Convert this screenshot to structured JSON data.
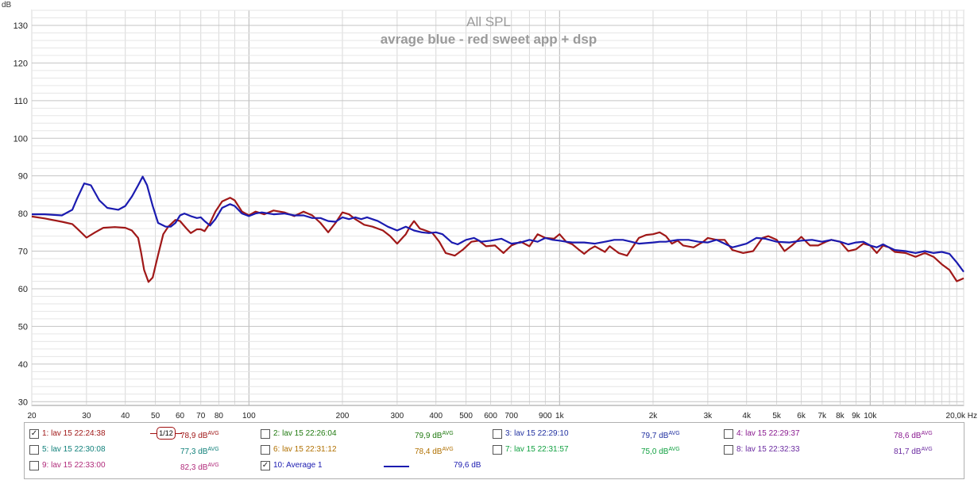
{
  "chart_data": {
    "type": "line",
    "title": "All SPL",
    "subtitle": "avrage blue - red sweet app + dsp",
    "ylabel": "dB",
    "xlabel": "Hz",
    "xscale": "log",
    "xlim": [
      20,
      20000
    ],
    "ylim": [
      29,
      134
    ],
    "grid": true,
    "y_ticks": [
      30,
      40,
      50,
      60,
      70,
      80,
      90,
      100,
      110,
      120,
      130
    ],
    "x_tick_labels": [
      {
        "v": 20,
        "t": "20"
      },
      {
        "v": 30,
        "t": "30"
      },
      {
        "v": 40,
        "t": "40"
      },
      {
        "v": 50,
        "t": "50"
      },
      {
        "v": 60,
        "t": "60"
      },
      {
        "v": 70,
        "t": "70"
      },
      {
        "v": 80,
        "t": "80"
      },
      {
        "v": 100,
        "t": "100"
      },
      {
        "v": 200,
        "t": "200"
      },
      {
        "v": 300,
        "t": "300"
      },
      {
        "v": 400,
        "t": "400"
      },
      {
        "v": 500,
        "t": "500"
      },
      {
        "v": 600,
        "t": "600"
      },
      {
        "v": 700,
        "t": "700"
      },
      {
        "v": 900,
        "t": "900"
      },
      {
        "v": 1000,
        "t": "1k"
      },
      {
        "v": 2000,
        "t": "2k"
      },
      {
        "v": 3000,
        "t": "3k"
      },
      {
        "v": 4000,
        "t": "4k"
      },
      {
        "v": 5000,
        "t": "5k"
      },
      {
        "v": 6000,
        "t": "6k"
      },
      {
        "v": 7000,
        "t": "7k"
      },
      {
        "v": 8000,
        "t": "8k"
      },
      {
        "v": 9000,
        "t": "9k"
      },
      {
        "v": 10000,
        "t": "10k"
      },
      {
        "v": 20000,
        "t": "20,0k Hz"
      }
    ],
    "series": [
      {
        "name": "1: lav 15 22:24:38",
        "color": "#a01818",
        "points": [
          [
            20,
            79.2
          ],
          [
            22,
            78.7
          ],
          [
            25,
            77.8
          ],
          [
            27,
            77.2
          ],
          [
            28,
            76.0
          ],
          [
            30,
            73.6
          ],
          [
            32,
            75.0
          ],
          [
            34,
            76.2
          ],
          [
            37,
            76.4
          ],
          [
            40,
            76.2
          ],
          [
            42,
            75.5
          ],
          [
            44,
            73.5
          ],
          [
            45,
            69.5
          ],
          [
            46,
            65.0
          ],
          [
            47.5,
            61.8
          ],
          [
            49,
            63.0
          ],
          [
            51,
            69.0
          ],
          [
            53,
            74.5
          ],
          [
            55,
            76.5
          ],
          [
            58,
            78.3
          ],
          [
            60,
            78.0
          ],
          [
            63,
            76.0
          ],
          [
            65,
            74.8
          ],
          [
            68,
            75.8
          ],
          [
            70,
            75.8
          ],
          [
            72,
            75.3
          ],
          [
            75,
            77.5
          ],
          [
            78,
            80.5
          ],
          [
            82,
            83.2
          ],
          [
            87,
            84.2
          ],
          [
            90,
            83.5
          ],
          [
            95,
            80.5
          ],
          [
            100,
            79.5
          ],
          [
            105,
            80.5
          ],
          [
            112,
            79.8
          ],
          [
            120,
            80.8
          ],
          [
            130,
            80.3
          ],
          [
            140,
            79.3
          ],
          [
            150,
            80.5
          ],
          [
            160,
            79.5
          ],
          [
            170,
            77.5
          ],
          [
            180,
            75.0
          ],
          [
            190,
            77.5
          ],
          [
            200,
            80.3
          ],
          [
            210,
            79.8
          ],
          [
            220,
            78.5
          ],
          [
            235,
            77.0
          ],
          [
            250,
            76.5
          ],
          [
            270,
            75.5
          ],
          [
            285,
            74.0
          ],
          [
            300,
            72.0
          ],
          [
            320,
            74.5
          ],
          [
            330,
            76.5
          ],
          [
            340,
            78.0
          ],
          [
            355,
            76.0
          ],
          [
            370,
            75.5
          ],
          [
            390,
            74.8
          ],
          [
            410,
            72.5
          ],
          [
            430,
            69.5
          ],
          [
            460,
            68.8
          ],
          [
            490,
            70.5
          ],
          [
            520,
            72.5
          ],
          [
            550,
            72.8
          ],
          [
            580,
            71.3
          ],
          [
            620,
            71.5
          ],
          [
            660,
            69.5
          ],
          [
            700,
            71.5
          ],
          [
            750,
            72.5
          ],
          [
            800,
            71.3
          ],
          [
            850,
            74.5
          ],
          [
            900,
            73.5
          ],
          [
            960,
            73.3
          ],
          [
            1000,
            74.5
          ],
          [
            1050,
            72.5
          ],
          [
            1100,
            71.8
          ],
          [
            1150,
            70.5
          ],
          [
            1200,
            69.3
          ],
          [
            1250,
            70.5
          ],
          [
            1300,
            71.3
          ],
          [
            1400,
            69.8
          ],
          [
            1450,
            71.3
          ],
          [
            1550,
            69.5
          ],
          [
            1650,
            68.8
          ],
          [
            1700,
            70.5
          ],
          [
            1800,
            73.5
          ],
          [
            1900,
            74.3
          ],
          [
            2000,
            74.5
          ],
          [
            2100,
            75.0
          ],
          [
            2200,
            74.0
          ],
          [
            2300,
            72.0
          ],
          [
            2400,
            72.8
          ],
          [
            2500,
            71.5
          ],
          [
            2700,
            71.0
          ],
          [
            2900,
            72.5
          ],
          [
            3000,
            73.5
          ],
          [
            3200,
            73.0
          ],
          [
            3400,
            73.0
          ],
          [
            3600,
            70.3
          ],
          [
            3900,
            69.5
          ],
          [
            4200,
            70.0
          ],
          [
            4500,
            73.5
          ],
          [
            4700,
            74.0
          ],
          [
            5000,
            73.0
          ],
          [
            5300,
            70.0
          ],
          [
            5600,
            71.5
          ],
          [
            6000,
            73.8
          ],
          [
            6400,
            71.5
          ],
          [
            6800,
            71.5
          ],
          [
            7200,
            72.5
          ],
          [
            7500,
            73.0
          ],
          [
            8000,
            72.5
          ],
          [
            8500,
            70.0
          ],
          [
            9000,
            70.5
          ],
          [
            9500,
            72.0
          ],
          [
            10000,
            71.5
          ],
          [
            10500,
            69.5
          ],
          [
            11000,
            71.5
          ],
          [
            11500,
            71.0
          ],
          [
            12000,
            69.8
          ],
          [
            13000,
            69.5
          ],
          [
            14000,
            68.5
          ],
          [
            15000,
            69.5
          ],
          [
            16000,
            68.5
          ],
          [
            17000,
            66.5
          ],
          [
            18000,
            65.0
          ],
          [
            19000,
            62.0
          ],
          [
            20000,
            62.8
          ]
        ]
      },
      {
        "name": "10: Average 1",
        "color": "#1b1bb0",
        "points": [
          [
            20,
            79.8
          ],
          [
            22,
            79.8
          ],
          [
            25,
            79.5
          ],
          [
            27,
            81.0
          ],
          [
            28,
            84.0
          ],
          [
            29.5,
            88.0
          ],
          [
            31,
            87.5
          ],
          [
            33,
            83.5
          ],
          [
            35,
            81.5
          ],
          [
            38,
            81.0
          ],
          [
            40,
            82.0
          ],
          [
            42,
            84.5
          ],
          [
            44,
            87.5
          ],
          [
            45.5,
            89.8
          ],
          [
            47,
            87.5
          ],
          [
            49,
            82.0
          ],
          [
            51,
            77.5
          ],
          [
            54,
            76.5
          ],
          [
            56,
            76.5
          ],
          [
            58,
            77.5
          ],
          [
            60,
            79.5
          ],
          [
            62,
            80.0
          ],
          [
            65,
            79.3
          ],
          [
            68,
            78.8
          ],
          [
            70,
            79.0
          ],
          [
            72,
            78.0
          ],
          [
            75,
            76.8
          ],
          [
            78,
            78.5
          ],
          [
            82,
            81.5
          ],
          [
            87,
            82.5
          ],
          [
            90,
            82.0
          ],
          [
            95,
            80.0
          ],
          [
            100,
            79.3
          ],
          [
            105,
            80.0
          ],
          [
            110,
            80.3
          ],
          [
            120,
            79.8
          ],
          [
            130,
            80.0
          ],
          [
            140,
            79.5
          ],
          [
            150,
            79.5
          ],
          [
            160,
            78.8
          ],
          [
            170,
            78.8
          ],
          [
            180,
            78.0
          ],
          [
            190,
            77.8
          ],
          [
            200,
            79.0
          ],
          [
            210,
            78.5
          ],
          [
            220,
            79.0
          ],
          [
            230,
            78.5
          ],
          [
            240,
            79.0
          ],
          [
            260,
            78.0
          ],
          [
            280,
            76.5
          ],
          [
            300,
            75.5
          ],
          [
            320,
            76.5
          ],
          [
            340,
            75.5
          ],
          [
            360,
            75.0
          ],
          [
            380,
            74.8
          ],
          [
            400,
            75.0
          ],
          [
            420,
            74.5
          ],
          [
            450,
            72.3
          ],
          [
            470,
            71.8
          ],
          [
            500,
            73.0
          ],
          [
            530,
            73.5
          ],
          [
            560,
            72.5
          ],
          [
            600,
            72.8
          ],
          [
            650,
            73.3
          ],
          [
            700,
            72.0
          ],
          [
            750,
            72.3
          ],
          [
            800,
            73.0
          ],
          [
            850,
            72.5
          ],
          [
            900,
            73.5
          ],
          [
            950,
            73.0
          ],
          [
            1000,
            72.8
          ],
          [
            1050,
            72.5
          ],
          [
            1100,
            72.3
          ],
          [
            1200,
            72.3
          ],
          [
            1300,
            72.0
          ],
          [
            1400,
            72.5
          ],
          [
            1500,
            73.0
          ],
          [
            1600,
            73.0
          ],
          [
            1700,
            72.5
          ],
          [
            1800,
            72.0
          ],
          [
            2000,
            72.3
          ],
          [
            2100,
            72.5
          ],
          [
            2200,
            72.5
          ],
          [
            2400,
            73.0
          ],
          [
            2600,
            73.0
          ],
          [
            2800,
            72.5
          ],
          [
            3000,
            72.3
          ],
          [
            3200,
            73.0
          ],
          [
            3400,
            72.0
          ],
          [
            3600,
            71.0
          ],
          [
            3800,
            71.5
          ],
          [
            4000,
            72.0
          ],
          [
            4300,
            73.5
          ],
          [
            4600,
            73.3
          ],
          [
            5000,
            72.5
          ],
          [
            5500,
            72.3
          ],
          [
            6000,
            72.8
          ],
          [
            6500,
            73.0
          ],
          [
            7000,
            72.5
          ],
          [
            7500,
            73.0
          ],
          [
            8000,
            72.5
          ],
          [
            8500,
            71.8
          ],
          [
            9000,
            72.3
          ],
          [
            9500,
            72.5
          ],
          [
            10000,
            71.5
          ],
          [
            10500,
            71.0
          ],
          [
            11000,
            71.8
          ],
          [
            11500,
            71.0
          ],
          [
            12000,
            70.3
          ],
          [
            13000,
            70.0
          ],
          [
            14000,
            69.5
          ],
          [
            15000,
            70.0
          ],
          [
            16000,
            69.5
          ],
          [
            17000,
            69.8
          ],
          [
            18000,
            69.3
          ],
          [
            19000,
            67.0
          ],
          [
            20000,
            64.5
          ]
        ]
      }
    ]
  },
  "legend": [
    {
      "label": "1: lav 15 22:24:38",
      "value": "78,9 dB",
      "sup": "AVG",
      "checked": true,
      "color": "#a01818",
      "vcolor": "#a01818"
    },
    {
      "label": "2: lav 15 22:26:04",
      "value": "79,9 dB",
      "sup": "AVG",
      "checked": false,
      "color": "#207a10",
      "vcolor": "#207a10"
    },
    {
      "label": "3: lav 15 22:29:10",
      "value": "79,7 dB",
      "sup": "AVG",
      "checked": false,
      "color": "#2030a0",
      "vcolor": "#2030a0"
    },
    {
      "label": "4: lav 15 22:29:37",
      "value": "78,6 dB",
      "sup": "AVG",
      "checked": false,
      "color": "#8a1a90",
      "vcolor": "#8a1a90"
    },
    {
      "label": "5: lav 15 22:30:08",
      "value": "77,3 dB",
      "sup": "AVG",
      "checked": false,
      "color": "#10807a",
      "vcolor": "#10807a"
    },
    {
      "label": "6: lav 15 22:31:12",
      "value": "78,4 dB",
      "sup": "AVG",
      "checked": false,
      "color": "#b07000",
      "vcolor": "#b07000"
    },
    {
      "label": "7: lav 15 22:31:57",
      "value": "75,0 dB",
      "sup": "AVG",
      "checked": false,
      "color": "#10a040",
      "vcolor": "#10a040"
    },
    {
      "label": "8: lav 15 22:32:33",
      "value": "81,7 dB",
      "sup": "AVG",
      "checked": false,
      "color": "#6a2aa0",
      "vcolor": "#6a2aa0"
    },
    {
      "label": "9: lav 15 22:33:00",
      "value": "82,3 dB",
      "sup": "AVG",
      "checked": false,
      "color": "#b02a7a",
      "vcolor": "#b02a7a"
    },
    {
      "label": "10: Average 1",
      "value": "79,6 dB",
      "sup": "",
      "checked": true,
      "color": "#1b1bb0",
      "vcolor": "#1b1bb0"
    }
  ],
  "marker_text": "1/12"
}
